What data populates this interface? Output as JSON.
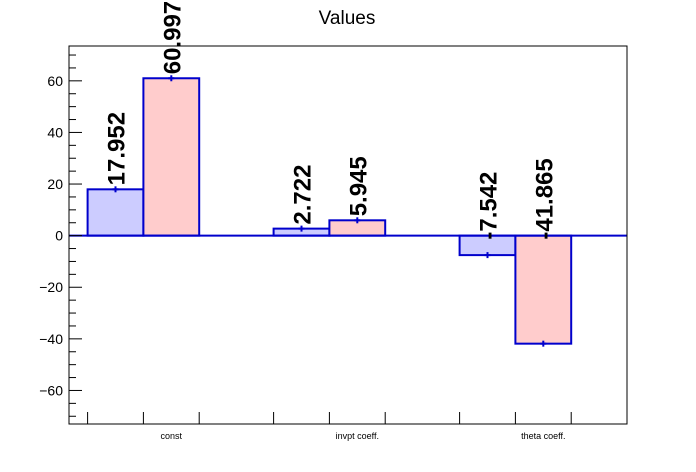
{
  "chart_data": {
    "type": "bar",
    "title": "Values",
    "xlabel": "",
    "ylabel": "",
    "categories": [
      "const",
      "invpt coeff.",
      "theta coeff."
    ],
    "series": [
      {
        "values": [
          17.952,
          2.722,
          -7.542
        ],
        "labels": [
          "17.952",
          "2.722",
          "-7.542"
        ],
        "fill": "#ccccff",
        "stroke": "#0000cc"
      },
      {
        "values": [
          60.997,
          5.945,
          -41.865
        ],
        "labels": [
          "60.997",
          "5.945",
          "-41.865"
        ],
        "fill": "#ffcccc",
        "stroke": "#0000cc"
      }
    ],
    "ylim": [
      -73,
      73.5
    ],
    "yticks": [
      -60,
      -40,
      -20,
      0,
      20,
      40,
      60
    ],
    "ytick_labels": [
      "−60",
      "−40",
      "−20",
      "0",
      "20",
      "40",
      "60"
    ],
    "grid": false,
    "legend": "none"
  }
}
